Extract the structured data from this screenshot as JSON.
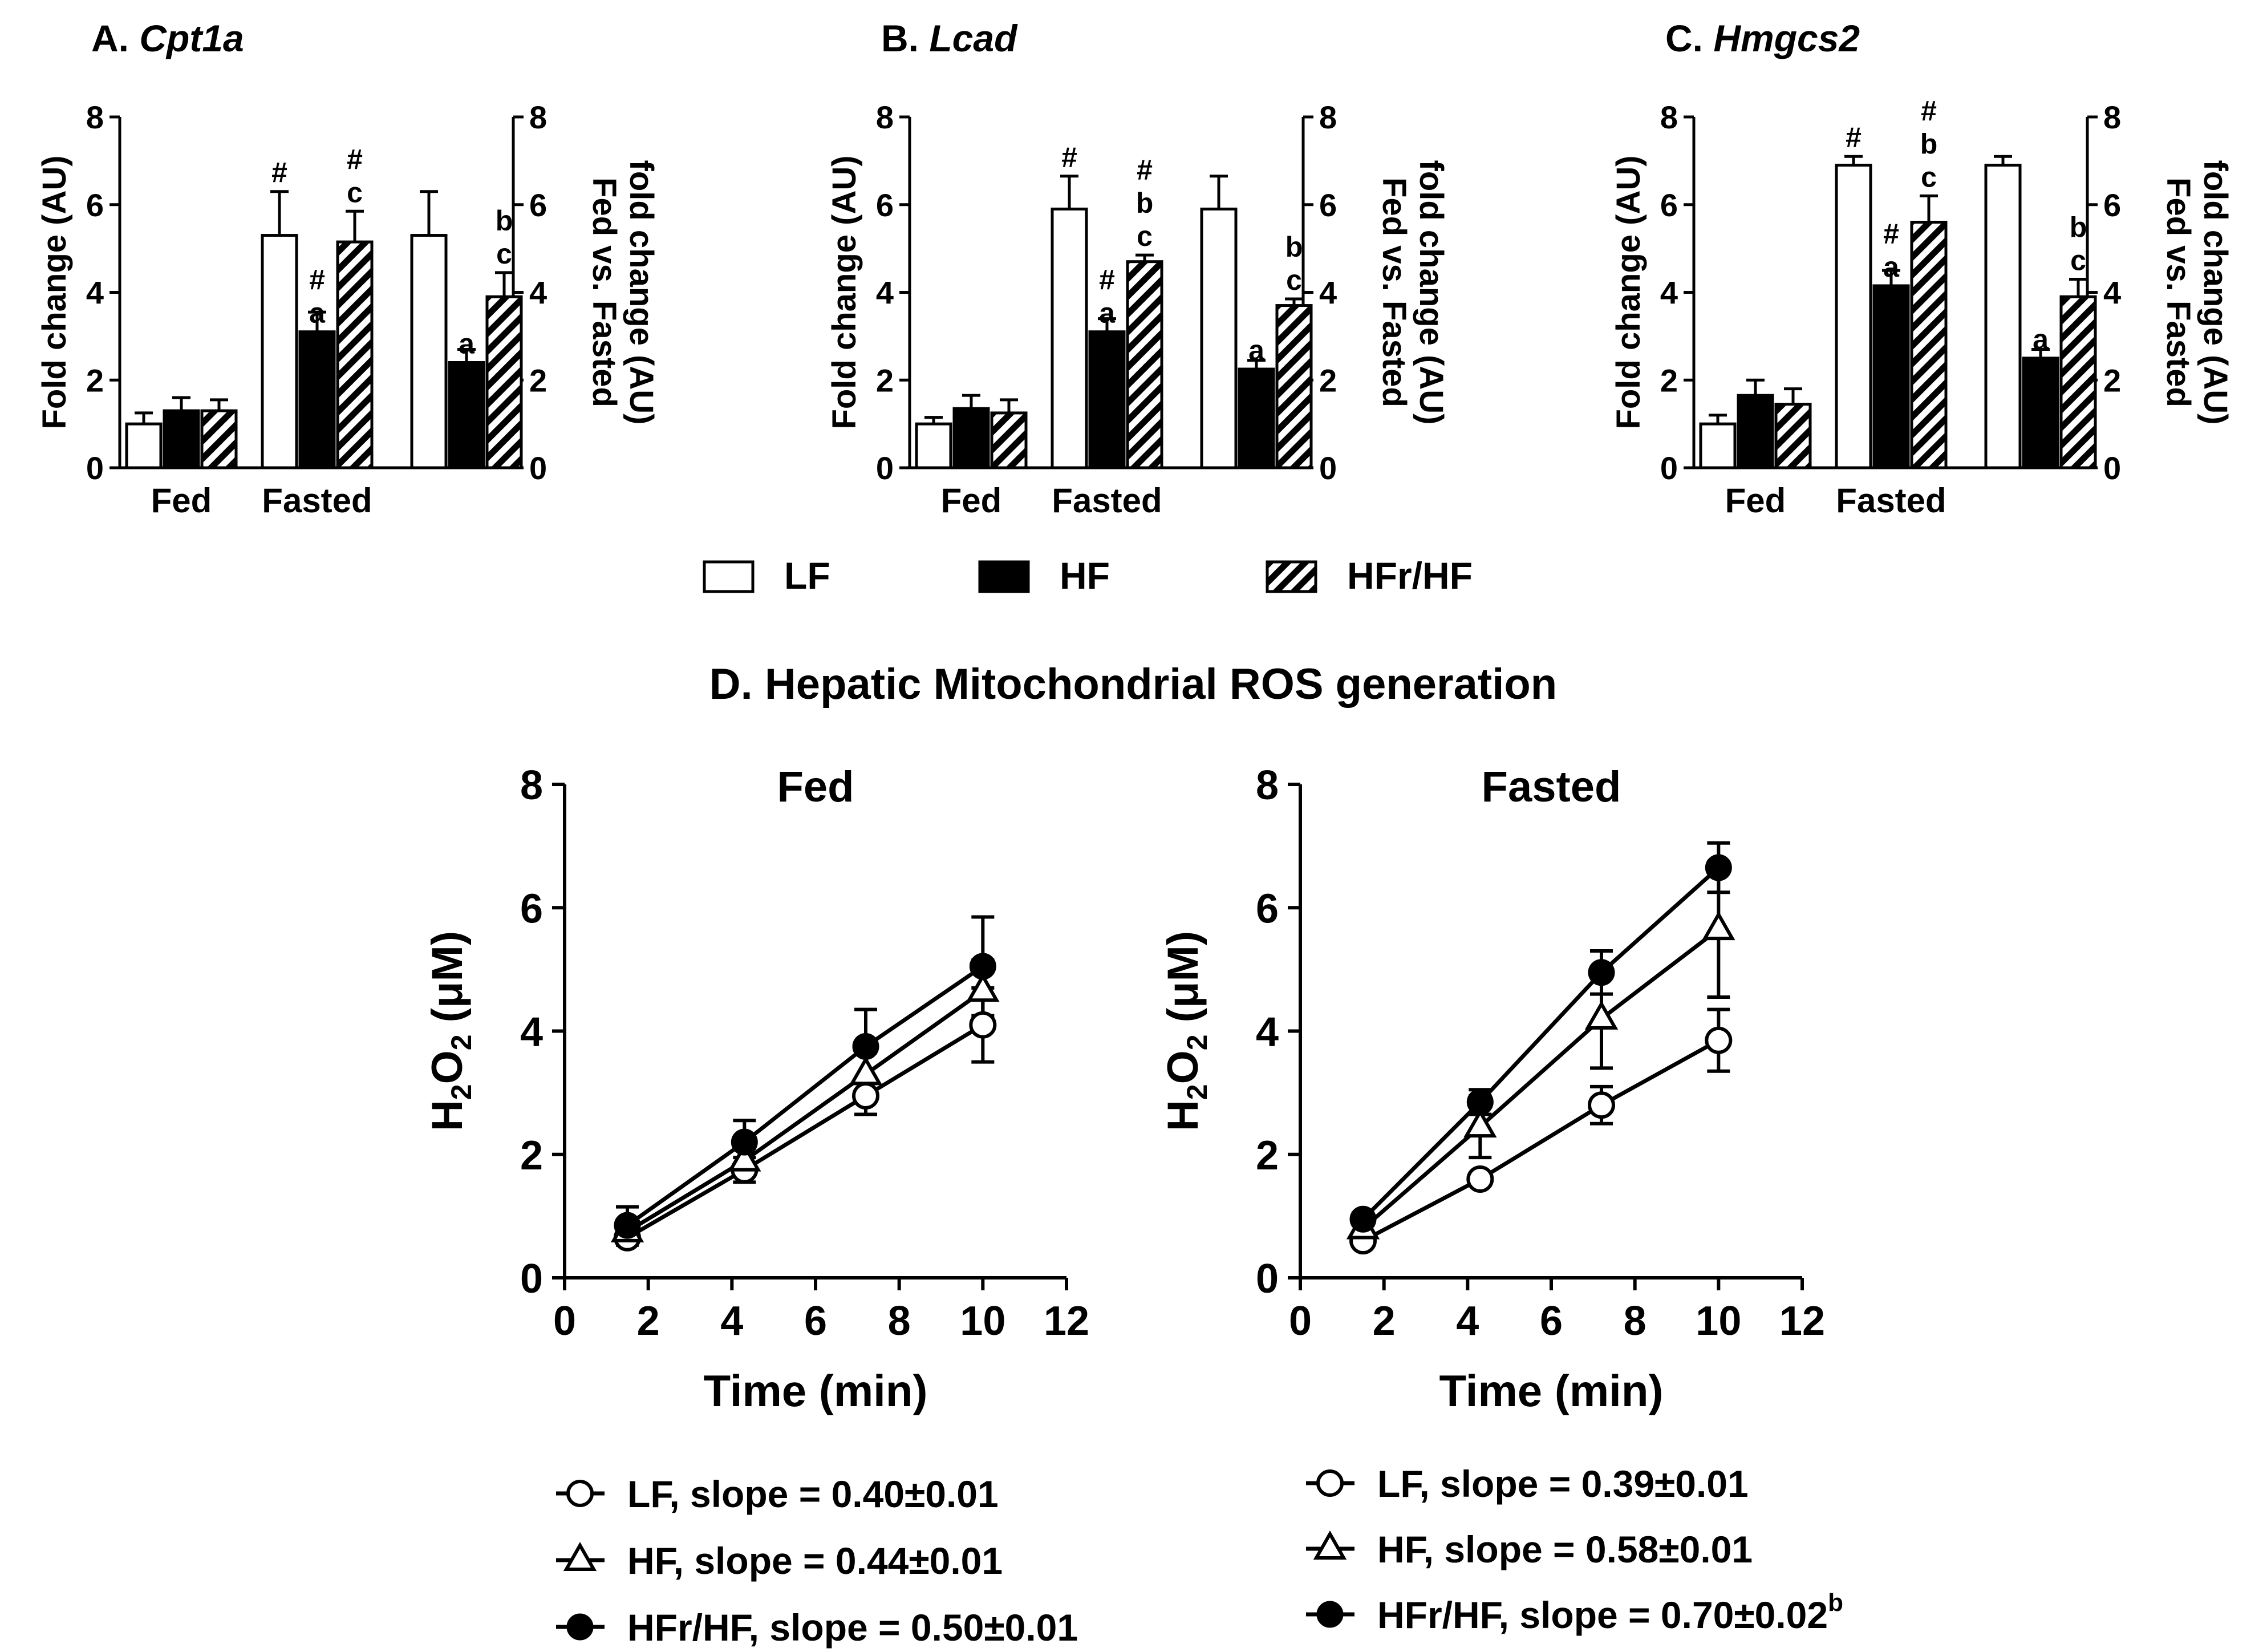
{
  "legend": {
    "items": [
      {
        "label": "LF",
        "fill": "white"
      },
      {
        "label": "HF",
        "fill": "black"
      },
      {
        "label": "HFr/HF",
        "fill": "hatch"
      }
    ]
  },
  "colors": {
    "ink": "#000000",
    "background": "#ffffff"
  },
  "bar_panels": [
    {
      "letter": "A.",
      "gene": "Cpt1a",
      "y_left_label": "Fold change (AU)",
      "y_right_label_1": "Fed vs. Fasted",
      "y_right_label_2": "fold change (AU)",
      "ylim": [
        0,
        8
      ],
      "yticks": [
        "0",
        "2",
        "4",
        "6",
        "8"
      ],
      "group_labels": [
        "Fed",
        "Fasted",
        ""
      ],
      "groups": [
        {
          "bars": [
            {
              "series": "LF",
              "value": 1.0,
              "err": 0.25,
              "ann": []
            },
            {
              "series": "HF",
              "value": 1.3,
              "err": 0.3,
              "ann": []
            },
            {
              "series": "HFr/HF",
              "value": 1.3,
              "err": 0.25,
              "ann": []
            }
          ]
        },
        {
          "bars": [
            {
              "series": "LF",
              "value": 5.3,
              "err": 1.0,
              "ann": [
                "#"
              ]
            },
            {
              "series": "HF",
              "value": 3.1,
              "err": 0.45,
              "ann": [
                "#",
                "a"
              ]
            },
            {
              "series": "HFr/HF",
              "value": 5.15,
              "err": 0.7,
              "ann": [
                "#",
                "c"
              ]
            }
          ]
        },
        {
          "bars": [
            {
              "series": "LF",
              "value": 5.3,
              "err": 1.0,
              "ann": []
            },
            {
              "series": "HF",
              "value": 2.4,
              "err": 0.3,
              "ann": [
                "a"
              ]
            },
            {
              "series": "HFr/HF",
              "value": 3.9,
              "err": 0.55,
              "ann": [
                "b",
                "c"
              ]
            }
          ]
        }
      ]
    },
    {
      "letter": "B.",
      "gene": "Lcad",
      "y_left_label": "Fold change (AU)",
      "y_right_label_1": "Fed vs. Fasted",
      "y_right_label_2": "fold change (AU)",
      "ylim": [
        0,
        8
      ],
      "yticks": [
        "0",
        "2",
        "4",
        "6",
        "8"
      ],
      "group_labels": [
        "Fed",
        "Fasted",
        ""
      ],
      "groups": [
        {
          "bars": [
            {
              "series": "LF",
              "value": 1.0,
              "err": 0.15,
              "ann": []
            },
            {
              "series": "HF",
              "value": 1.35,
              "err": 0.3,
              "ann": []
            },
            {
              "series": "HFr/HF",
              "value": 1.25,
              "err": 0.3,
              "ann": []
            }
          ]
        },
        {
          "bars": [
            {
              "series": "LF",
              "value": 5.9,
              "err": 0.75,
              "ann": [
                "#"
              ]
            },
            {
              "series": "HF",
              "value": 3.1,
              "err": 0.3,
              "ann": [
                "#",
                "a"
              ]
            },
            {
              "series": "HFr/HF",
              "value": 4.7,
              "err": 0.15,
              "ann": [
                "#",
                "b",
                "c"
              ]
            }
          ]
        },
        {
          "bars": [
            {
              "series": "LF",
              "value": 5.9,
              "err": 0.75,
              "ann": []
            },
            {
              "series": "HF",
              "value": 2.25,
              "err": 0.2,
              "ann": [
                "a"
              ]
            },
            {
              "series": "HFr/HF",
              "value": 3.7,
              "err": 0.15,
              "ann": [
                "b",
                "c"
              ]
            }
          ]
        }
      ]
    },
    {
      "letter": "C.",
      "gene": "Hmgcs2",
      "y_left_label": "Fold change (AU)",
      "y_right_label_1": "Fed vs. Fasted",
      "y_right_label_2": "fold change (AU)",
      "ylim": [
        0,
        8
      ],
      "yticks": [
        "0",
        "2",
        "4",
        "6",
        "8"
      ],
      "group_labels": [
        "Fed",
        "Fasted",
        ""
      ],
      "groups": [
        {
          "bars": [
            {
              "series": "LF",
              "value": 1.0,
              "err": 0.2,
              "ann": []
            },
            {
              "series": "HF",
              "value": 1.65,
              "err": 0.35,
              "ann": []
            },
            {
              "series": "HFr/HF",
              "value": 1.45,
              "err": 0.35,
              "ann": []
            }
          ]
        },
        {
          "bars": [
            {
              "series": "LF",
              "value": 6.9,
              "err": 0.2,
              "ann": [
                "#"
              ]
            },
            {
              "series": "HF",
              "value": 4.15,
              "err": 0.35,
              "ann": [
                "#",
                "a"
              ]
            },
            {
              "series": "HFr/HF",
              "value": 5.6,
              "err": 0.6,
              "ann": [
                "#",
                "b",
                "c"
              ]
            }
          ]
        },
        {
          "bars": [
            {
              "series": "LF",
              "value": 6.9,
              "err": 0.2,
              "ann": []
            },
            {
              "series": "HF",
              "value": 2.5,
              "err": 0.2,
              "ann": [
                "a"
              ]
            },
            {
              "series": "HFr/HF",
              "value": 3.9,
              "err": 0.4,
              "ann": [
                "b",
                "c"
              ]
            }
          ]
        }
      ]
    }
  ],
  "line_section_title": "D. Hepatic Mitochondrial ROS generation",
  "chart_data": [
    {
      "type": "line",
      "title": "Fed",
      "xlabel": "Time (min)",
      "ylabel": "H2O2 (μM)",
      "xlim": [
        0,
        12
      ],
      "ylim": [
        0,
        8
      ],
      "xticks": [
        "0",
        "2",
        "4",
        "6",
        "8",
        "10",
        "12"
      ],
      "yticks": [
        "0",
        "2",
        "4",
        "6",
        "8"
      ],
      "x": [
        1.5,
        4.3,
        7.2,
        10.0
      ],
      "series": [
        {
          "name": "LF",
          "marker": "open-circle",
          "values": [
            0.65,
            1.75,
            2.95,
            4.1
          ],
          "errors": [
            0.12,
            0.2,
            0.3,
            0.6
          ],
          "legend_text": "LF, slope = 0.40±0.01",
          "superscript": ""
        },
        {
          "name": "HF",
          "marker": "open-triangle",
          "values": [
            0.75,
            1.9,
            3.3,
            4.65
          ],
          "errors": [
            0.12,
            0.2,
            0.35,
            0.5
          ],
          "legend_text": "HF, slope = 0.44±0.01",
          "superscript": ""
        },
        {
          "name": "HFr/HF",
          "marker": "filled-circle",
          "values": [
            0.85,
            2.2,
            3.75,
            5.05
          ],
          "errors": [
            0.3,
            0.35,
            0.6,
            0.8
          ],
          "legend_text": "HFr/HF, slope = 0.50±0.01",
          "superscript": ""
        }
      ]
    },
    {
      "type": "line",
      "title": "Fasted",
      "xlabel": "Time (min)",
      "ylabel": "H2O2 (μM)",
      "xlim": [
        0,
        12
      ],
      "ylim": [
        0,
        8
      ],
      "xticks": [
        "0",
        "2",
        "4",
        "6",
        "8",
        "10",
        "12"
      ],
      "yticks": [
        "0",
        "2",
        "4",
        "6",
        "8"
      ],
      "x": [
        1.5,
        4.3,
        7.2,
        10.0
      ],
      "series": [
        {
          "name": "LF",
          "marker": "open-circle",
          "values": [
            0.6,
            1.6,
            2.8,
            3.85
          ],
          "errors": [
            0.08,
            0.1,
            0.3,
            0.5
          ],
          "legend_text": "LF, slope = 0.39±0.01",
          "superscript": ""
        },
        {
          "name": "HF",
          "marker": "open-triangle",
          "values": [
            0.8,
            2.45,
            4.2,
            5.65
          ],
          "errors": [
            0.12,
            0.5,
            0.8,
            1.1
          ],
          "legend_text": "HF, slope = 0.58±0.01",
          "superscript": ""
        },
        {
          "name": "HFr/HF",
          "marker": "filled-circle",
          "values": [
            0.95,
            2.85,
            4.95,
            6.65
          ],
          "errors": [
            0.1,
            0.2,
            0.35,
            0.4
          ],
          "legend_text": "HFr/HF, slope = 0.70±0.02",
          "superscript": "b"
        }
      ]
    }
  ]
}
